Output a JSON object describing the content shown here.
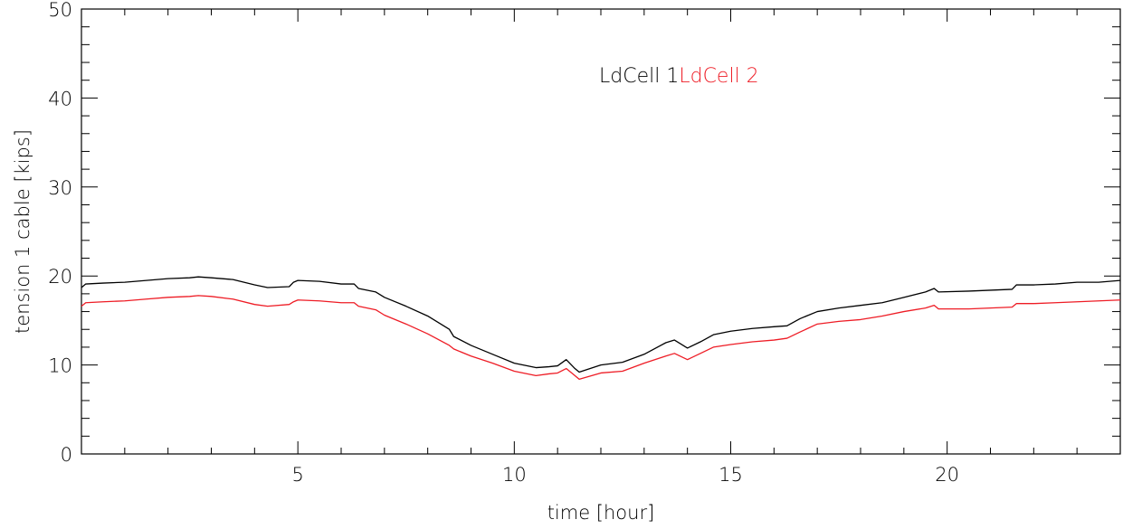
{
  "chart_data": {
    "type": "line",
    "title": "",
    "xlabel": "time [hour]",
    "ylabel": "tension 1 cable [kips]",
    "xlim": [
      0,
      24
    ],
    "ylim": [
      0,
      50
    ],
    "xticks": [
      5,
      10,
      15,
      20
    ],
    "yticks": [
      0,
      10,
      20,
      30,
      40,
      50
    ],
    "grid": false,
    "legend_position": "top-center",
    "series": [
      {
        "name": "LdCell 1",
        "color": "#000000",
        "points": [
          [
            0,
            18.7
          ],
          [
            0.1,
            19.1
          ],
          [
            0.5,
            19.2
          ],
          [
            1.0,
            19.3
          ],
          [
            1.5,
            19.5
          ],
          [
            2.0,
            19.7
          ],
          [
            2.5,
            19.8
          ],
          [
            2.7,
            19.9
          ],
          [
            3.0,
            19.8
          ],
          [
            3.5,
            19.6
          ],
          [
            4.0,
            19.0
          ],
          [
            4.3,
            18.7
          ],
          [
            4.8,
            18.8
          ],
          [
            4.9,
            19.3
          ],
          [
            5.0,
            19.5
          ],
          [
            5.5,
            19.4
          ],
          [
            6.0,
            19.1
          ],
          [
            6.3,
            19.1
          ],
          [
            6.4,
            18.6
          ],
          [
            6.8,
            18.2
          ],
          [
            7.0,
            17.6
          ],
          [
            7.5,
            16.6
          ],
          [
            8.0,
            15.5
          ],
          [
            8.5,
            14.0
          ],
          [
            8.6,
            13.2
          ],
          [
            9.0,
            12.2
          ],
          [
            9.5,
            11.2
          ],
          [
            10.0,
            10.2
          ],
          [
            10.5,
            9.7
          ],
          [
            10.8,
            9.8
          ],
          [
            11.0,
            9.9
          ],
          [
            11.2,
            10.6
          ],
          [
            11.4,
            9.6
          ],
          [
            11.5,
            9.2
          ],
          [
            12.0,
            10.0
          ],
          [
            12.5,
            10.3
          ],
          [
            13.0,
            11.2
          ],
          [
            13.5,
            12.5
          ],
          [
            13.7,
            12.8
          ],
          [
            14.0,
            11.9
          ],
          [
            14.3,
            12.6
          ],
          [
            14.6,
            13.4
          ],
          [
            15.0,
            13.8
          ],
          [
            15.5,
            14.1
          ],
          [
            16.0,
            14.3
          ],
          [
            16.3,
            14.4
          ],
          [
            16.6,
            15.2
          ],
          [
            17.0,
            16.0
          ],
          [
            17.5,
            16.4
          ],
          [
            18.0,
            16.7
          ],
          [
            18.5,
            17.0
          ],
          [
            19.0,
            17.6
          ],
          [
            19.5,
            18.2
          ],
          [
            19.7,
            18.6
          ],
          [
            19.8,
            18.2
          ],
          [
            20.5,
            18.3
          ],
          [
            21.0,
            18.4
          ],
          [
            21.5,
            18.5
          ],
          [
            21.6,
            19.0
          ],
          [
            22.0,
            19.0
          ],
          [
            22.5,
            19.1
          ],
          [
            23.0,
            19.3
          ],
          [
            23.5,
            19.3
          ],
          [
            24.0,
            19.5
          ]
        ]
      },
      {
        "name": "LdCell 2",
        "color": "#ee1c25",
        "points": [
          [
            0,
            16.6
          ],
          [
            0.1,
            17.0
          ],
          [
            0.5,
            17.1
          ],
          [
            1.0,
            17.2
          ],
          [
            1.5,
            17.4
          ],
          [
            2.0,
            17.6
          ],
          [
            2.5,
            17.7
          ],
          [
            2.7,
            17.8
          ],
          [
            3.0,
            17.7
          ],
          [
            3.5,
            17.4
          ],
          [
            4.0,
            16.8
          ],
          [
            4.3,
            16.6
          ],
          [
            4.8,
            16.8
          ],
          [
            4.9,
            17.1
          ],
          [
            5.0,
            17.3
          ],
          [
            5.5,
            17.2
          ],
          [
            6.0,
            17.0
          ],
          [
            6.3,
            17.0
          ],
          [
            6.4,
            16.6
          ],
          [
            6.8,
            16.2
          ],
          [
            7.0,
            15.6
          ],
          [
            7.5,
            14.6
          ],
          [
            8.0,
            13.5
          ],
          [
            8.5,
            12.2
          ],
          [
            8.6,
            11.8
          ],
          [
            9.0,
            11.0
          ],
          [
            9.5,
            10.2
          ],
          [
            10.0,
            9.3
          ],
          [
            10.5,
            8.8
          ],
          [
            10.8,
            9.0
          ],
          [
            11.0,
            9.1
          ],
          [
            11.2,
            9.6
          ],
          [
            11.4,
            8.8
          ],
          [
            11.5,
            8.4
          ],
          [
            12.0,
            9.1
          ],
          [
            12.5,
            9.3
          ],
          [
            13.0,
            10.2
          ],
          [
            13.5,
            11.0
          ],
          [
            13.7,
            11.3
          ],
          [
            14.0,
            10.6
          ],
          [
            14.3,
            11.3
          ],
          [
            14.6,
            12.0
          ],
          [
            15.0,
            12.3
          ],
          [
            15.5,
            12.6
          ],
          [
            16.0,
            12.8
          ],
          [
            16.3,
            13.0
          ],
          [
            16.6,
            13.7
          ],
          [
            17.0,
            14.6
          ],
          [
            17.5,
            14.9
          ],
          [
            18.0,
            15.1
          ],
          [
            18.5,
            15.5
          ],
          [
            19.0,
            16.0
          ],
          [
            19.5,
            16.4
          ],
          [
            19.7,
            16.7
          ],
          [
            19.8,
            16.3
          ],
          [
            20.5,
            16.3
          ],
          [
            21.0,
            16.4
          ],
          [
            21.5,
            16.5
          ],
          [
            21.6,
            16.9
          ],
          [
            22.0,
            16.9
          ],
          [
            22.5,
            17.0
          ],
          [
            23.0,
            17.1
          ],
          [
            23.5,
            17.2
          ],
          [
            24.0,
            17.3
          ]
        ]
      }
    ]
  }
}
